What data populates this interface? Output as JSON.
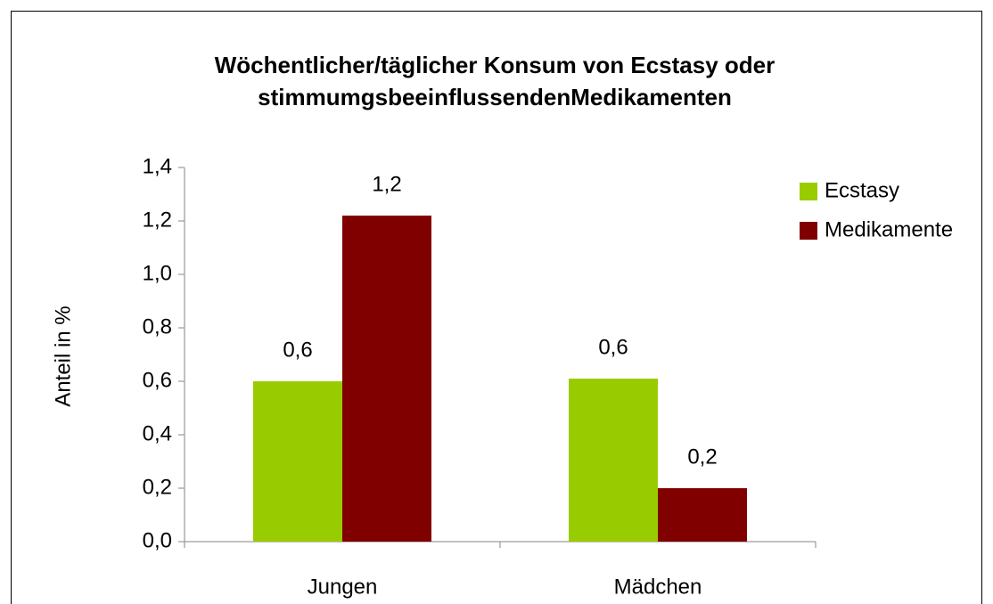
{
  "chart_data": {
    "type": "bar",
    "title": [
      "Wöchentlicher/täglicher Konsum von Ecstasy oder",
      "stimmumgsbeeinflussendenMedikamenten"
    ],
    "y_label": "Anteil in %",
    "categories": [
      "Jungen",
      "Mädchen"
    ],
    "series": [
      {
        "name": "Ecstasy",
        "color": "#99cc00",
        "values": [
          0.6,
          0.61
        ],
        "value_labels": [
          "0,6",
          "0,6"
        ]
      },
      {
        "name": "Medikamente",
        "color": "#800000",
        "values": [
          1.22,
          0.2
        ],
        "value_labels": [
          "1,2",
          "0,2"
        ]
      }
    ],
    "ylim": [
      0,
      1.4
    ],
    "yticks": [
      {
        "value": 0,
        "label": "0,0"
      },
      {
        "value": 0.2,
        "label": "0,2"
      },
      {
        "value": 0.4,
        "label": "0,4"
      },
      {
        "value": 0.6,
        "label": "0,6"
      },
      {
        "value": 0.8,
        "label": "0,8"
      },
      {
        "value": 1.0,
        "label": "1,0"
      },
      {
        "value": 1.2,
        "label": "1,2"
      },
      {
        "value": 1.4,
        "label": "1,4"
      }
    ],
    "grid": false,
    "legend": "right"
  }
}
